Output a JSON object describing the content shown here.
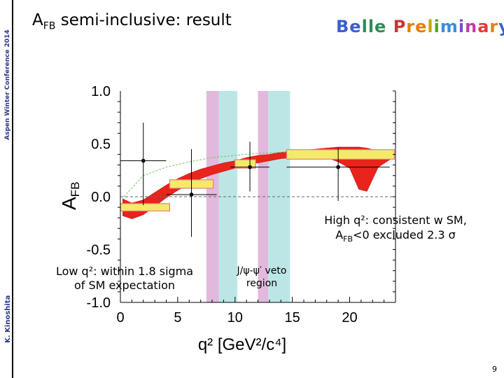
{
  "slide": {
    "title_main": "A",
    "title_sub": "FB",
    "title_rest": " semi-inclusive: result",
    "preliminary": "Belle Preliminary",
    "side_conference": "Aspen Winter Conference 2014",
    "side_author": "K. Kinoshita",
    "page_number": "9",
    "note_high_line1": "High q²: consistent w SM,",
    "note_high_line2": "A",
    "note_high_sub": "FB",
    "note_high_tail": "<0 excluded 2.3 σ",
    "note_low_line1": "Low q²: within 1.8 sigma",
    "note_low_line2": "of SM expectation",
    "note_veto_line1": "J/ψ-ψ′ veto",
    "note_veto_line2": "region"
  },
  "colors": {
    "prelim_letters": [
      "#3a5fcd",
      "#3a5fcd",
      "#2e8b57",
      "#2e8b57",
      "#2e8b57",
      "#cc3333",
      "#e87d00",
      "#e87d00",
      "#c9a600",
      "#5aa02c",
      "#3a8fd8",
      "#7a4fc4",
      "#c03cab",
      "#e03c3c",
      "#e87d00",
      "#3a5fcd",
      "#2e8b57"
    ],
    "sm_band": "#e8241c",
    "bin_box": "#f4ea6a",
    "bin_edge": "#e87d7d",
    "veto_pink": "#e3b8dd",
    "veto_cyan": "#bce6e6",
    "guide": "#7cc45c",
    "side_text": "#2a3a8c"
  },
  "chart_data": {
    "type": "scatter",
    "title": "",
    "xlabel": "q² [GeV²/c⁴]",
    "ylabel": "A",
    "ylabel_sub": "FB",
    "xlim": [
      0,
      24
    ],
    "ylim": [
      -1.0,
      1.0
    ],
    "xticks": [
      0,
      5,
      10,
      15,
      20
    ],
    "yticks": [
      -1.0,
      -0.5,
      0.0,
      0.5,
      1.0
    ],
    "xtick_labels": [
      "0",
      "5",
      "10",
      "15",
      "20"
    ],
    "ytick_labels": [
      "-1.0",
      "-0.5",
      "0.0",
      "0.5",
      "1.0"
    ],
    "data_points": {
      "name": "Belle data",
      "x": [
        2.0,
        6.2,
        11.3,
        19.0
      ],
      "y": [
        0.34,
        0.02,
        0.28,
        0.28
      ],
      "xerr": [
        2.0,
        2.2,
        1.7,
        4.5
      ],
      "yerr_low": [
        0.42,
        0.4,
        0.23,
        0.32
      ],
      "yerr_high": [
        0.36,
        0.43,
        0.24,
        0.18
      ]
    },
    "sm_prediction_bins": {
      "name": "SM expectation (binned)",
      "x_low": [
        0,
        4.3,
        10.0,
        14.5
      ],
      "x_high": [
        4.3,
        8.1,
        11.8,
        23.9
      ],
      "y": [
        -0.1,
        0.12,
        0.31,
        0.4
      ],
      "half_height": [
        0.035,
        0.04,
        0.04,
        0.045
      ]
    },
    "sm_prediction_curve": {
      "name": "SM expectation (curve)",
      "x": [
        0.2,
        1,
        2,
        3,
        4,
        5,
        6,
        7,
        8,
        9,
        10,
        11,
        12,
        13,
        14,
        15,
        16,
        17,
        18,
        19,
        20,
        20.8,
        21.5,
        22.5,
        23.5
      ],
      "y_low": [
        -0.18,
        -0.21,
        -0.17,
        -0.09,
        -0.01,
        0.06,
        0.12,
        0.17,
        0.21,
        0.24,
        0.27,
        0.3,
        0.32,
        0.34,
        0.36,
        0.37,
        0.38,
        0.38,
        0.37,
        0.33,
        0.27,
        0.07,
        0.05,
        0.28,
        0.35
      ],
      "y_high": [
        -0.02,
        -0.06,
        -0.03,
        0.04,
        0.11,
        0.17,
        0.22,
        0.26,
        0.29,
        0.32,
        0.34,
        0.37,
        0.39,
        0.4,
        0.42,
        0.43,
        0.44,
        0.45,
        0.46,
        0.47,
        0.47,
        0.47,
        0.46,
        0.43,
        0.42
      ]
    },
    "guide_curve": {
      "name": "reference",
      "x": [
        0.3,
        2,
        4,
        6,
        8,
        10,
        12,
        14,
        16,
        18,
        20,
        22,
        24
      ],
      "y": [
        0.0,
        0.2,
        0.28,
        0.33,
        0.37,
        0.39,
        0.41,
        0.42,
        0.43,
        0.43,
        0.42,
        0.41,
        0.4
      ]
    },
    "veto_regions": [
      {
        "name": "J/psi veto",
        "x_low": 7.5,
        "x_high": 8.6,
        "color_key": "veto_pink"
      },
      {
        "name": "J/psi veto",
        "x_low": 8.6,
        "x_high": 10.2,
        "color_key": "veto_cyan"
      },
      {
        "name": "psi' veto",
        "x_low": 12.0,
        "x_high": 12.9,
        "color_key": "veto_pink"
      },
      {
        "name": "psi' veto",
        "x_low": 12.9,
        "x_high": 14.8,
        "color_key": "veto_cyan"
      }
    ],
    "zero_line": 0.0
  }
}
